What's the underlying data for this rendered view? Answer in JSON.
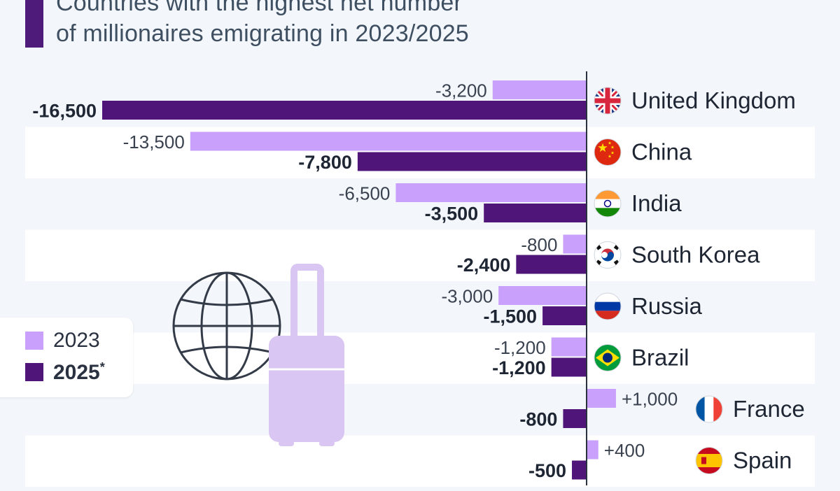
{
  "title_line1": "Countries with the highest net number",
  "title_line2": "of millionaires emigrating in 2023/2025",
  "legend": {
    "items": [
      {
        "label": "2023",
        "color": "#c9a0fb"
      },
      {
        "label": "2025",
        "suffix": "*",
        "color": "#4f1578"
      }
    ]
  },
  "chart_data": {
    "type": "bar",
    "orientation": "horizontal",
    "categories": [
      "United Kingdom",
      "China",
      "India",
      "South Korea",
      "Russia",
      "Brazil",
      "France",
      "Spain"
    ],
    "series": [
      {
        "name": "2023",
        "color": "#c9a0fb",
        "values": [
          -3200,
          -13500,
          -6500,
          -800,
          -3000,
          -1200,
          1000,
          400
        ],
        "labels": [
          "-3,200",
          "-13,500",
          "-6,500",
          "-800",
          "-3,000",
          "-1,200",
          "+1,000",
          "+400"
        ]
      },
      {
        "name": "2025*",
        "color": "#4f1578",
        "values": [
          -16500,
          -7800,
          -3500,
          -2400,
          -1500,
          -1200,
          -800,
          -500
        ],
        "labels": [
          "-16,500",
          "-7,800",
          "-3,500",
          "-2,400",
          "-1,500",
          "-1,200",
          "-800",
          "-500"
        ]
      }
    ],
    "flag_icons": [
      "uk-flag-icon",
      "china-flag-icon",
      "india-flag-icon",
      "south-korea-flag-icon",
      "russia-flag-icon",
      "brazil-flag-icon",
      "france-flag-icon",
      "spain-flag-icon"
    ]
  },
  "decorations": [
    "globe-icon",
    "suitcase-icon"
  ]
}
